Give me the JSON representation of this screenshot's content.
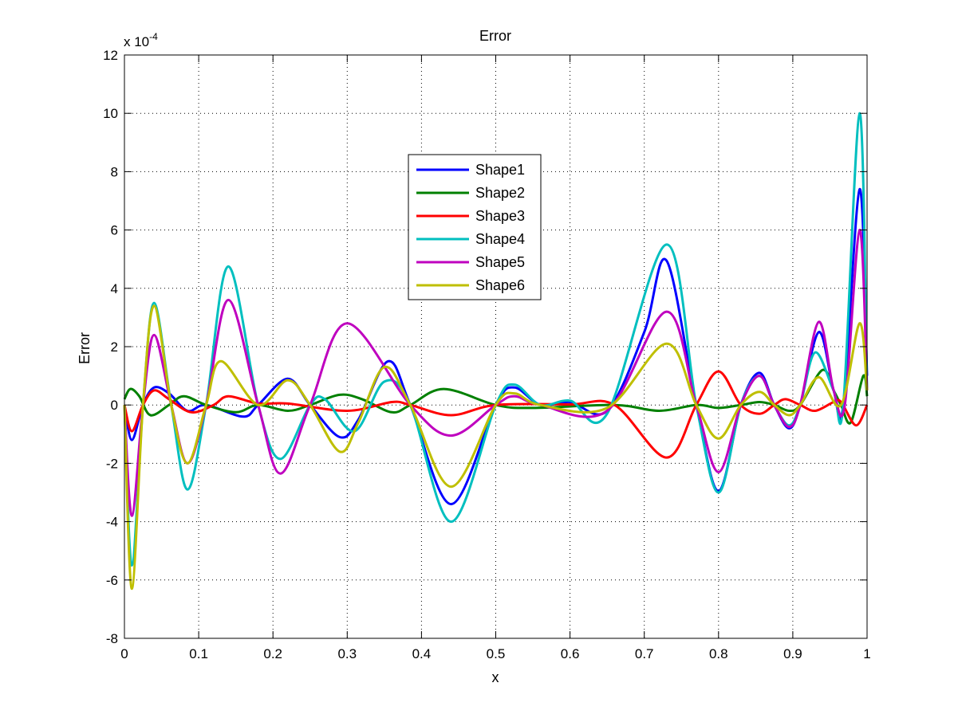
{
  "chart_data": {
    "type": "line",
    "title": "Error",
    "xlabel": "x",
    "ylabel": "Error",
    "y_multiplier_label": {
      "base": "x 10",
      "exp": "-4"
    },
    "xlim": [
      0,
      1
    ],
    "ylim": [
      -8,
      12
    ],
    "xticks": [
      0,
      0.1,
      0.2,
      0.3,
      0.4,
      0.5,
      0.6,
      0.7,
      0.8,
      0.9,
      1
    ],
    "xtick_labels": [
      "0",
      "0.1",
      "0.2",
      "0.3",
      "0.4",
      "0.5",
      "0.6",
      "0.7",
      "0.8",
      "0.9",
      "1"
    ],
    "yticks": [
      -8,
      -6,
      -4,
      -2,
      0,
      2,
      4,
      6,
      8,
      10,
      12
    ],
    "ytick_labels": [
      "-8",
      "-6",
      "-4",
      "-2",
      "0",
      "2",
      "4",
      "6",
      "8",
      "10",
      "12"
    ],
    "grid": true,
    "legend_position": "upper-center",
    "series": [
      {
        "name": "Shape1",
        "color": "#0000ff",
        "points": [
          [
            0,
            0
          ],
          [
            0.01,
            -1.2
          ],
          [
            0.025,
            0
          ],
          [
            0.04,
            0.6
          ],
          [
            0.06,
            0.4
          ],
          [
            0.085,
            -0.2
          ],
          [
            0.11,
            0
          ],
          [
            0.16,
            -0.4
          ],
          [
            0.18,
            0
          ],
          [
            0.22,
            0.9
          ],
          [
            0.25,
            0
          ],
          [
            0.29,
            -1.1
          ],
          [
            0.315,
            -0.5
          ],
          [
            0.355,
            1.5
          ],
          [
            0.385,
            0
          ],
          [
            0.44,
            -3.4
          ],
          [
            0.5,
            0
          ],
          [
            0.525,
            0.6
          ],
          [
            0.56,
            0
          ],
          [
            0.6,
            0.1
          ],
          [
            0.65,
            -0.2
          ],
          [
            0.7,
            2.5
          ],
          [
            0.73,
            4.95
          ],
          [
            0.77,
            0
          ],
          [
            0.8,
            -2.95
          ],
          [
            0.83,
            0
          ],
          [
            0.855,
            1.1
          ],
          [
            0.875,
            0
          ],
          [
            0.895,
            -0.8
          ],
          [
            0.91,
            0
          ],
          [
            0.935,
            2.5
          ],
          [
            0.955,
            0.5
          ],
          [
            0.968,
            0
          ],
          [
            0.99,
            7.4
          ],
          [
            1,
            1
          ]
        ]
      },
      {
        "name": "Shape2",
        "color": "#008000",
        "points": [
          [
            0,
            0.2
          ],
          [
            0.008,
            0.55
          ],
          [
            0.02,
            0.3
          ],
          [
            0.035,
            -0.35
          ],
          [
            0.06,
            0
          ],
          [
            0.08,
            0.3
          ],
          [
            0.11,
            0
          ],
          [
            0.15,
            -0.25
          ],
          [
            0.18,
            0
          ],
          [
            0.22,
            -0.2
          ],
          [
            0.25,
            0
          ],
          [
            0.29,
            0.35
          ],
          [
            0.32,
            0.2
          ],
          [
            0.36,
            -0.25
          ],
          [
            0.385,
            0
          ],
          [
            0.43,
            0.55
          ],
          [
            0.5,
            0
          ],
          [
            0.55,
            -0.1
          ],
          [
            0.66,
            0
          ],
          [
            0.72,
            -0.2
          ],
          [
            0.77,
            0
          ],
          [
            0.8,
            -0.1
          ],
          [
            0.83,
            0
          ],
          [
            0.855,
            0.1
          ],
          [
            0.875,
            0
          ],
          [
            0.895,
            -0.2
          ],
          [
            0.91,
            0
          ],
          [
            0.94,
            1.2
          ],
          [
            0.955,
            0.5
          ],
          [
            0.965,
            0
          ],
          [
            0.978,
            -0.6
          ],
          [
            0.995,
            1.0
          ],
          [
            1,
            0.3
          ]
        ]
      },
      {
        "name": "Shape3",
        "color": "#ff0000",
        "points": [
          [
            0,
            0
          ],
          [
            0.01,
            -0.9
          ],
          [
            0.025,
            0
          ],
          [
            0.04,
            0.5
          ],
          [
            0.06,
            0.2
          ],
          [
            0.09,
            -0.25
          ],
          [
            0.12,
            0
          ],
          [
            0.14,
            0.3
          ],
          [
            0.18,
            0.05
          ],
          [
            0.22,
            0.05
          ],
          [
            0.3,
            -0.2
          ],
          [
            0.36,
            0.1
          ],
          [
            0.385,
            0
          ],
          [
            0.44,
            -0.35
          ],
          [
            0.5,
            0
          ],
          [
            0.6,
            0.02
          ],
          [
            0.66,
            0
          ],
          [
            0.73,
            -1.8
          ],
          [
            0.77,
            0
          ],
          [
            0.8,
            1.15
          ],
          [
            0.83,
            0
          ],
          [
            0.855,
            -0.3
          ],
          [
            0.875,
            0
          ],
          [
            0.89,
            0.2
          ],
          [
            0.91,
            0
          ],
          [
            0.93,
            -0.2
          ],
          [
            0.955,
            0.1
          ],
          [
            0.965,
            0.1
          ],
          [
            0.985,
            -0.7
          ],
          [
            1,
            0
          ]
        ]
      },
      {
        "name": "Shape4",
        "color": "#00bfbf",
        "points": [
          [
            0,
            0
          ],
          [
            0.01,
            -5.5
          ],
          [
            0.025,
            0
          ],
          [
            0.04,
            3.5
          ],
          [
            0.063,
            0
          ],
          [
            0.085,
            -2.9
          ],
          [
            0.11,
            0
          ],
          [
            0.14,
            4.75
          ],
          [
            0.18,
            0
          ],
          [
            0.21,
            -1.85
          ],
          [
            0.25,
            0
          ],
          [
            0.27,
            0.2
          ],
          [
            0.31,
            -0.9
          ],
          [
            0.35,
            0.8
          ],
          [
            0.385,
            0
          ],
          [
            0.44,
            -4.0
          ],
          [
            0.5,
            0
          ],
          [
            0.525,
            0.7
          ],
          [
            0.56,
            0
          ],
          [
            0.6,
            0.15
          ],
          [
            0.65,
            -0.3
          ],
          [
            0.73,
            5.5
          ],
          [
            0.77,
            0
          ],
          [
            0.8,
            -3.0
          ],
          [
            0.83,
            0
          ],
          [
            0.855,
            1.0
          ],
          [
            0.875,
            0
          ],
          [
            0.895,
            -0.7
          ],
          [
            0.91,
            0
          ],
          [
            0.93,
            1.8
          ],
          [
            0.955,
            0.5
          ],
          [
            0.968,
            0
          ],
          [
            0.99,
            10
          ],
          [
            1,
            0.5
          ]
        ]
      },
      {
        "name": "Shape5",
        "color": "#bf00bf",
        "points": [
          [
            0,
            0
          ],
          [
            0.01,
            -3.8
          ],
          [
            0.025,
            0
          ],
          [
            0.04,
            2.4
          ],
          [
            0.063,
            0
          ],
          [
            0.085,
            -2.0
          ],
          [
            0.11,
            0
          ],
          [
            0.14,
            3.6
          ],
          [
            0.18,
            0
          ],
          [
            0.21,
            -2.35
          ],
          [
            0.25,
            0
          ],
          [
            0.3,
            2.8
          ],
          [
            0.385,
            0
          ],
          [
            0.44,
            -1.05
          ],
          [
            0.5,
            0
          ],
          [
            0.525,
            0.3
          ],
          [
            0.56,
            0
          ],
          [
            0.65,
            -0.2
          ],
          [
            0.73,
            3.2
          ],
          [
            0.77,
            0
          ],
          [
            0.8,
            -2.3
          ],
          [
            0.83,
            0
          ],
          [
            0.855,
            1.0
          ],
          [
            0.875,
            0
          ],
          [
            0.895,
            -0.75
          ],
          [
            0.91,
            0
          ],
          [
            0.935,
            2.85
          ],
          [
            0.955,
            0.5
          ],
          [
            0.97,
            0
          ],
          [
            0.99,
            6
          ],
          [
            1,
            0.5
          ]
        ]
      },
      {
        "name": "Shape6",
        "color": "#bfbf00",
        "points": [
          [
            0,
            0
          ],
          [
            0.01,
            -6.3
          ],
          [
            0.025,
            0
          ],
          [
            0.04,
            3.4
          ],
          [
            0.063,
            0
          ],
          [
            0.085,
            -2.0
          ],
          [
            0.11,
            0
          ],
          [
            0.13,
            1.5
          ],
          [
            0.18,
            0
          ],
          [
            0.22,
            0.85
          ],
          [
            0.25,
            0
          ],
          [
            0.29,
            -1.6
          ],
          [
            0.315,
            -0.6
          ],
          [
            0.35,
            1.3
          ],
          [
            0.385,
            0
          ],
          [
            0.44,
            -2.8
          ],
          [
            0.5,
            0
          ],
          [
            0.525,
            0.4
          ],
          [
            0.56,
            0
          ],
          [
            0.65,
            -0.1
          ],
          [
            0.73,
            2.1
          ],
          [
            0.77,
            0
          ],
          [
            0.8,
            -1.15
          ],
          [
            0.83,
            0
          ],
          [
            0.855,
            0.45
          ],
          [
            0.875,
            0
          ],
          [
            0.895,
            -0.35
          ],
          [
            0.91,
            0
          ],
          [
            0.935,
            0.95
          ],
          [
            0.965,
            0
          ],
          [
            0.99,
            2.8
          ],
          [
            1,
            0.5
          ]
        ]
      }
    ]
  }
}
